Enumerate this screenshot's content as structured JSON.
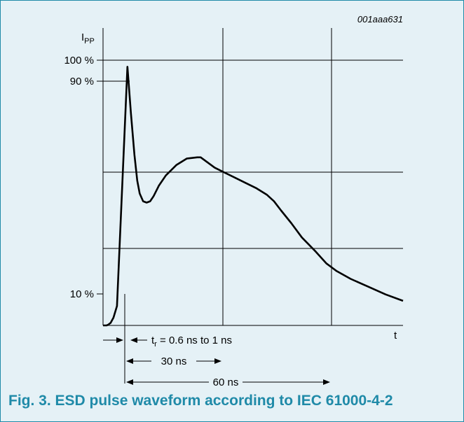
{
  "figure": {
    "id_label": "001aaa631",
    "caption": "Fig. 3. ESD pulse waveform according to IEC 61000-4-2",
    "caption_color": "#1f8aa8",
    "background_color": "#e5f1f6"
  },
  "chart_data": {
    "type": "line",
    "title": "",
    "ylabel_main": "I",
    "ylabel_sub": "PP",
    "xlabel": "t",
    "y_ticks": [
      {
        "label": "100 %",
        "value": 100
      },
      {
        "label": "90 %",
        "value": 90
      },
      {
        "label": "10 %",
        "value": 10
      }
    ],
    "x_range_ns": [
      -1,
      85
    ],
    "y_range_percent": [
      0,
      115
    ],
    "grid": true,
    "series": [
      {
        "values_ns_percent": [
          [
            -1,
            0
          ],
          [
            0,
            0
          ],
          [
            0.5,
            0.3
          ],
          [
            1.2,
            1
          ],
          [
            2,
            3
          ],
          [
            3,
            7.5
          ],
          [
            6,
            100
          ],
          [
            7,
            82
          ],
          [
            8,
            66
          ],
          [
            8.8,
            56
          ],
          [
            9.5,
            51
          ],
          [
            10.5,
            48
          ],
          [
            11.5,
            47.5
          ],
          [
            12.5,
            48
          ],
          [
            13.5,
            50
          ],
          [
            15,
            54
          ],
          [
            17,
            58
          ],
          [
            20,
            62
          ],
          [
            23,
            64.5
          ],
          [
            26,
            65
          ],
          [
            27,
            65
          ],
          [
            29,
            63
          ],
          [
            31,
            61
          ],
          [
            34,
            59
          ],
          [
            37,
            57
          ],
          [
            40,
            55
          ],
          [
            43,
            53
          ],
          [
            46,
            50.5
          ],
          [
            48,
            48
          ],
          [
            50,
            44.5
          ],
          [
            53,
            39.5
          ],
          [
            56,
            34
          ],
          [
            60,
            28.5
          ],
          [
            63,
            24
          ],
          [
            66,
            21
          ],
          [
            70,
            18
          ],
          [
            75,
            15
          ],
          [
            80,
            12
          ],
          [
            85,
            9.5
          ]
        ]
      }
    ],
    "annotations": {
      "rise_time_main": "t",
      "rise_time_sub": "r",
      "rise_time_rest": " = 0.6 ns to 1 ns",
      "span_30": "30 ns",
      "span_60": "60 ns"
    }
  }
}
